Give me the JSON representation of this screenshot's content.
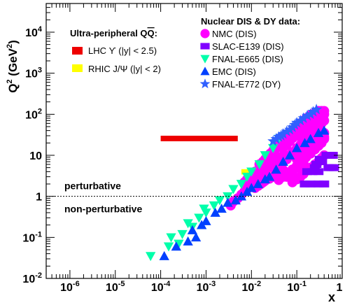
{
  "chart_data": {
    "type": "scatter",
    "x_scale": "log",
    "y_scale": "log",
    "xlim": [
      3e-07,
      1
    ],
    "ylim": [
      0.01,
      50000
    ],
    "xlabel": "x",
    "ylabel_base": "Q",
    "ylabel_exp": "2",
    "ylabel_unit_open": " (GeV",
    "ylabel_unit_exp": "2",
    "ylabel_unit_close": ")",
    "x_ticks": [
      {
        "value": 1e-06,
        "base": "10",
        "exp": "-6"
      },
      {
        "value": 1e-05,
        "base": "10",
        "exp": "-5"
      },
      {
        "value": 0.0001,
        "base": "10",
        "exp": "-4"
      },
      {
        "value": 0.001,
        "base": "10",
        "exp": "-3"
      },
      {
        "value": 0.01,
        "base": "10",
        "exp": "-2"
      },
      {
        "value": 0.1,
        "base": "10",
        "exp": "-1"
      },
      {
        "value": 1,
        "base": "1",
        "exp": ""
      }
    ],
    "y_ticks": [
      {
        "value": 0.01,
        "base": "10",
        "exp": "-2"
      },
      {
        "value": 0.1,
        "base": "10",
        "exp": "-1"
      },
      {
        "value": 1,
        "base": "1",
        "exp": ""
      },
      {
        "value": 10,
        "base": "10",
        "exp": ""
      },
      {
        "value": 100,
        "base": "10",
        "exp": "2"
      },
      {
        "value": 1000,
        "base": "10",
        "exp": "3"
      },
      {
        "value": 10000,
        "base": "10",
        "exp": "4"
      }
    ],
    "threshold": {
      "y": 1,
      "label_above": "perturbative",
      "label_below": "non-perturbative"
    },
    "legend_upc": {
      "title_main": "Ultra-peripheral Q",
      "title_bar": "Q",
      "title_end": ":",
      "placement": "top-center",
      "entries": [
        {
          "label": "LHC ϒ (|y| < 2.5)",
          "color": "#ee0000"
        },
        {
          "label": "RHIC J/Ψ (|y| < 2)",
          "color": "#ffff00"
        }
      ]
    },
    "upc_regions": [
      {
        "name": "LHC ϒ (|y| < 2.5)",
        "color": "#ee0000",
        "x_range": [
          0.0001,
          0.005
        ],
        "y_range": [
          22,
          30
        ]
      },
      {
        "name": "RHIC J/Ψ (|y| < 2)",
        "color": "#ffff00",
        "x_range": [
          0.006,
          0.05
        ],
        "y_range": [
          3.4,
          4.6
        ]
      }
    ],
    "legend_dis": {
      "title": "Nuclear DIS & DY data:",
      "placement": "top-right"
    },
    "series": [
      {
        "name": "NMC (DIS)",
        "marker": "circle",
        "color": "#ff00ff",
        "points": [
          [
            0.0035,
            0.6
          ],
          [
            0.004,
            0.75
          ],
          [
            0.005,
            0.9
          ],
          [
            0.006,
            1.1
          ],
          [
            0.007,
            1.3
          ],
          [
            0.008,
            1.5
          ],
          [
            0.009,
            1.8
          ],
          [
            0.01,
            2.1
          ],
          [
            0.012,
            2.5
          ],
          [
            0.014,
            2.9
          ],
          [
            0.016,
            3.2
          ],
          [
            0.018,
            3.5
          ],
          [
            0.02,
            3.8
          ],
          [
            0.009,
            2.5
          ],
          [
            0.011,
            3
          ],
          [
            0.013,
            3.5
          ],
          [
            0.016,
            4
          ],
          [
            0.02,
            5
          ],
          [
            0.025,
            6
          ],
          [
            0.03,
            7
          ],
          [
            0.035,
            8
          ],
          [
            0.04,
            9
          ],
          [
            0.05,
            10
          ],
          [
            0.012,
            1.6
          ],
          [
            0.014,
            1.8
          ],
          [
            0.016,
            2
          ],
          [
            0.018,
            2.2
          ],
          [
            0.02,
            2.4
          ],
          [
            0.025,
            2.7
          ],
          [
            0.03,
            3
          ],
          [
            0.035,
            3.3
          ],
          [
            0.04,
            3.7
          ],
          [
            0.045,
            4
          ],
          [
            0.05,
            4.4
          ],
          [
            0.02,
            8
          ],
          [
            0.025,
            10
          ],
          [
            0.03,
            12
          ],
          [
            0.035,
            15
          ],
          [
            0.04,
            18
          ],
          [
            0.05,
            22
          ],
          [
            0.06,
            27
          ],
          [
            0.07,
            33
          ],
          [
            0.08,
            40
          ],
          [
            0.1,
            50
          ],
          [
            0.12,
            60
          ],
          [
            0.14,
            70
          ],
          [
            0.16,
            80
          ],
          [
            0.2,
            95
          ],
          [
            0.25,
            110
          ],
          [
            0.3,
            120
          ],
          [
            0.35,
            120
          ],
          [
            0.4,
            120
          ],
          [
            0.03,
            5
          ],
          [
            0.04,
            6
          ],
          [
            0.05,
            7
          ],
          [
            0.06,
            8
          ],
          [
            0.07,
            10
          ],
          [
            0.08,
            12
          ],
          [
            0.1,
            15
          ],
          [
            0.12,
            18
          ],
          [
            0.14,
            22
          ],
          [
            0.16,
            27
          ],
          [
            0.2,
            33
          ],
          [
            0.25,
            40
          ],
          [
            0.3,
            50
          ],
          [
            0.35,
            60
          ],
          [
            0.4,
            70
          ],
          [
            0.06,
            3
          ],
          [
            0.07,
            3.5
          ],
          [
            0.08,
            4
          ],
          [
            0.1,
            5
          ],
          [
            0.12,
            6
          ],
          [
            0.14,
            7
          ],
          [
            0.16,
            9
          ],
          [
            0.2,
            11
          ],
          [
            0.25,
            14
          ],
          [
            0.3,
            17
          ],
          [
            0.35,
            20
          ],
          [
            0.4,
            25
          ],
          [
            0.05,
            15
          ],
          [
            0.06,
            18
          ],
          [
            0.07,
            22
          ],
          [
            0.08,
            26
          ],
          [
            0.1,
            30
          ],
          [
            0.12,
            35
          ],
          [
            0.14,
            42
          ],
          [
            0.16,
            50
          ],
          [
            0.2,
            60
          ],
          [
            0.25,
            70
          ],
          [
            0.3,
            80
          ],
          [
            0.35,
            90
          ],
          [
            0.4,
            100
          ],
          [
            0.04,
            2.5
          ],
          [
            0.05,
            3
          ],
          [
            0.06,
            3.6
          ],
          [
            0.08,
            4.5
          ],
          [
            0.1,
            5.5
          ],
          [
            0.12,
            6.5
          ],
          [
            0.14,
            8
          ],
          [
            0.16,
            10
          ],
          [
            0.2,
            12
          ],
          [
            0.25,
            15
          ],
          [
            0.3,
            18
          ],
          [
            0.35,
            22
          ],
          [
            0.4,
            28
          ],
          [
            0.08,
            2.2
          ],
          [
            0.1,
            2.6
          ],
          [
            0.12,
            3
          ],
          [
            0.14,
            3.5
          ],
          [
            0.16,
            4.2
          ],
          [
            0.2,
            5
          ],
          [
            0.25,
            6
          ],
          [
            0.3,
            7
          ],
          [
            0.35,
            8.5
          ],
          [
            0.4,
            10
          ],
          [
            0.1,
            8
          ],
          [
            0.12,
            10
          ],
          [
            0.14,
            12
          ],
          [
            0.16,
            14
          ],
          [
            0.2,
            17
          ],
          [
            0.25,
            20
          ],
          [
            0.3,
            25
          ],
          [
            0.35,
            30
          ],
          [
            0.4,
            35
          ],
          [
            0.015,
            6
          ],
          [
            0.018,
            7
          ],
          [
            0.022,
            9
          ],
          [
            0.026,
            11
          ],
          [
            0.03,
            13
          ],
          [
            0.007,
            2.2
          ],
          [
            0.008,
            2.6
          ],
          [
            0.01,
            3
          ],
          [
            0.012,
            4
          ]
        ]
      },
      {
        "name": "SLAC-E139 (DIS)",
        "marker": "square",
        "color": "#8000ff",
        "points": [
          [
            0.45,
            10
          ],
          [
            0.55,
            10
          ],
          [
            0.62,
            10
          ],
          [
            0.5,
            5
          ],
          [
            0.58,
            5
          ],
          [
            0.66,
            5
          ],
          [
            0.32,
            8
          ],
          [
            0.36,
            7
          ],
          [
            0.25,
            5
          ],
          [
            0.27,
            6
          ],
          [
            0.2,
            2
          ],
          [
            0.3,
            2
          ],
          [
            0.4,
            2
          ],
          [
            0.15,
            2
          ],
          [
            0.17,
            4
          ],
          [
            0.22,
            4
          ],
          [
            0.3,
            4
          ]
        ]
      },
      {
        "name": "FNAL-E665 (DIS)",
        "marker": "triangle-down",
        "color": "#00ffaa",
        "points": [
          [
            6e-05,
            0.035
          ],
          [
            0.00015,
            0.06
          ],
          [
            0.00025,
            0.07
          ],
          [
            0.00017,
            0.1
          ],
          [
            0.0003,
            0.12
          ],
          [
            0.0005,
            0.18
          ],
          [
            0.0004,
            0.22
          ],
          [
            0.0007,
            0.3
          ],
          [
            0.001,
            0.4
          ],
          [
            0.0009,
            0.5
          ],
          [
            0.0015,
            0.6
          ],
          [
            0.002,
            0.8
          ],
          [
            0.003,
            1
          ],
          [
            0.004,
            1.5
          ],
          [
            0.006,
            2
          ],
          [
            0.008,
            3
          ],
          [
            0.01,
            4
          ],
          [
            0.015,
            6
          ],
          [
            0.02,
            10
          ],
          [
            0.03,
            15
          ],
          [
            0.04,
            25
          ]
        ]
      },
      {
        "name": "EMC (DIS)",
        "marker": "triangle-up",
        "color": "#0040ff",
        "points": [
          [
            0.00012,
            0.035
          ],
          [
            0.00022,
            0.06
          ],
          [
            0.0004,
            0.08
          ],
          [
            0.0006,
            0.1
          ],
          [
            0.0005,
            0.15
          ],
          [
            0.0008,
            0.2
          ],
          [
            0.001,
            0.25
          ],
          [
            0.0016,
            0.4
          ],
          [
            0.0022,
            0.5
          ],
          [
            0.003,
            0.7
          ],
          [
            0.0045,
            0.8
          ],
          [
            0.006,
            1
          ],
          [
            0.008,
            1.3
          ],
          [
            0.01,
            1.6
          ],
          [
            0.014,
            2
          ],
          [
            0.02,
            2.6
          ],
          [
            0.025,
            3
          ],
          [
            0.035,
            4.5
          ],
          [
            0.05,
            7
          ],
          [
            0.07,
            10
          ],
          [
            0.1,
            15
          ],
          [
            0.15,
            20
          ],
          [
            0.2,
            25
          ],
          [
            0.3,
            35
          ],
          [
            0.4,
            40
          ]
        ]
      },
      {
        "name": "FNAL-E772 (DY)",
        "marker": "star",
        "color": "#3060ff",
        "points": [
          [
            0.03,
            22
          ],
          [
            0.035,
            25
          ],
          [
            0.04,
            28
          ],
          [
            0.045,
            30
          ],
          [
            0.05,
            33
          ],
          [
            0.06,
            38
          ],
          [
            0.07,
            42
          ],
          [
            0.08,
            48
          ],
          [
            0.09,
            55
          ],
          [
            0.1,
            62
          ],
          [
            0.12,
            70
          ],
          [
            0.14,
            80
          ],
          [
            0.17,
            92
          ],
          [
            0.2,
            100
          ],
          [
            0.23,
            115
          ],
          [
            0.27,
            130
          ]
        ]
      }
    ]
  }
}
